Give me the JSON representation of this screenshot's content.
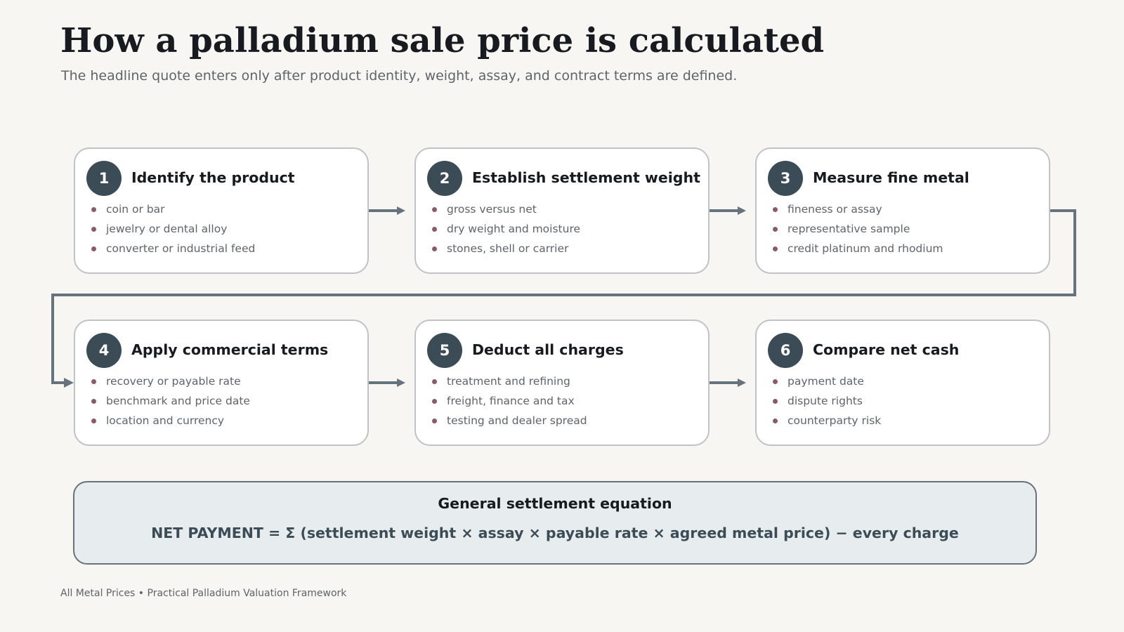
{
  "header": {
    "title": "How a palladium sale price is calculated",
    "subtitle": "The headline quote enters only after product identity, weight, assay, and contract terms are defined."
  },
  "steps": [
    {
      "number": "1",
      "title": "Identify the product",
      "bullets": [
        "coin or bar",
        "jewelry or dental alloy",
        "converter or industrial feed"
      ]
    },
    {
      "number": "2",
      "title": "Establish settlement weight",
      "bullets": [
        "gross versus net",
        "dry weight and moisture",
        "stones, shell or carrier"
      ]
    },
    {
      "number": "3",
      "title": "Measure fine metal",
      "bullets": [
        "fineness or assay",
        "representative sample",
        "credit platinum and rhodium"
      ]
    },
    {
      "number": "4",
      "title": "Apply commercial terms",
      "bullets": [
        "recovery or payable rate",
        "benchmark and price date",
        "location and currency"
      ]
    },
    {
      "number": "5",
      "title": "Deduct all charges",
      "bullets": [
        "treatment and refining",
        "freight, finance and tax",
        "testing and dealer spread"
      ]
    },
    {
      "number": "6",
      "title": "Compare net cash",
      "bullets": [
        "payment date",
        "dispute rights",
        "counterparty risk"
      ]
    }
  ],
  "equation": {
    "heading": "General settlement equation",
    "formula": "NET PAYMENT = Σ (settlement weight × assay × payable rate × agreed metal price) − every charge"
  },
  "footer": {
    "note": "All Metal Prices • Practical Palladium Valuation Framework"
  },
  "colors": {
    "background": "#f7f6f2",
    "badge": "#3b4c57",
    "connector": "#66737c",
    "bullet": "#8a5a6b",
    "equation_fill": "#e7ecee"
  }
}
